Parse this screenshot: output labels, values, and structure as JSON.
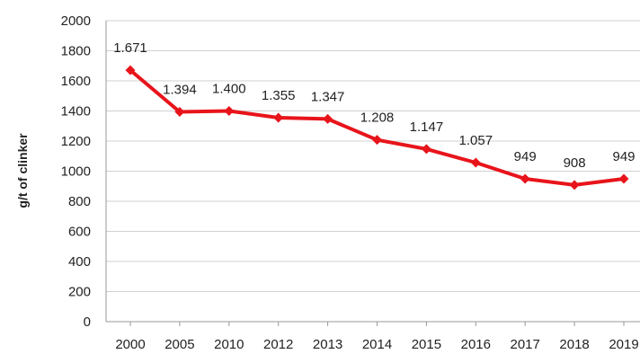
{
  "chart_data": {
    "type": "line",
    "title": "",
    "xlabel": "",
    "ylabel": "g/t of clinker",
    "ylim": [
      0,
      2000
    ],
    "yticks": [
      0,
      200,
      400,
      600,
      800,
      1000,
      1200,
      1400,
      1600,
      1800,
      2000
    ],
    "grid": true,
    "legend": "none",
    "categories": [
      "2000",
      "2005",
      "2010",
      "2012",
      "2013",
      "2014",
      "2015",
      "2016",
      "2017",
      "2018",
      "2019"
    ],
    "series": [
      {
        "values": [
          1671,
          1394,
          1400,
          1355,
          1347,
          1208,
          1147,
          1057,
          949,
          908,
          949
        ],
        "labels": [
          "1.671",
          "1.394",
          "1.400",
          "1.355",
          "1.347",
          "1.208",
          "1.147",
          "1.057",
          "949",
          "908",
          "949"
        ],
        "color": "#e8141b"
      }
    ]
  }
}
